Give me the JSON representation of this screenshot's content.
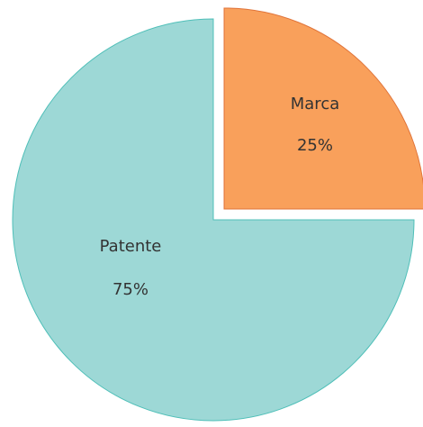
{
  "chart_data": {
    "type": "pie",
    "categories": [
      "Marca",
      "Patente"
    ],
    "values": [
      25,
      75
    ],
    "value_labels": [
      "25%",
      "75%"
    ],
    "colors": [
      "#f9a05b",
      "#9dd8d6"
    ]
  }
}
